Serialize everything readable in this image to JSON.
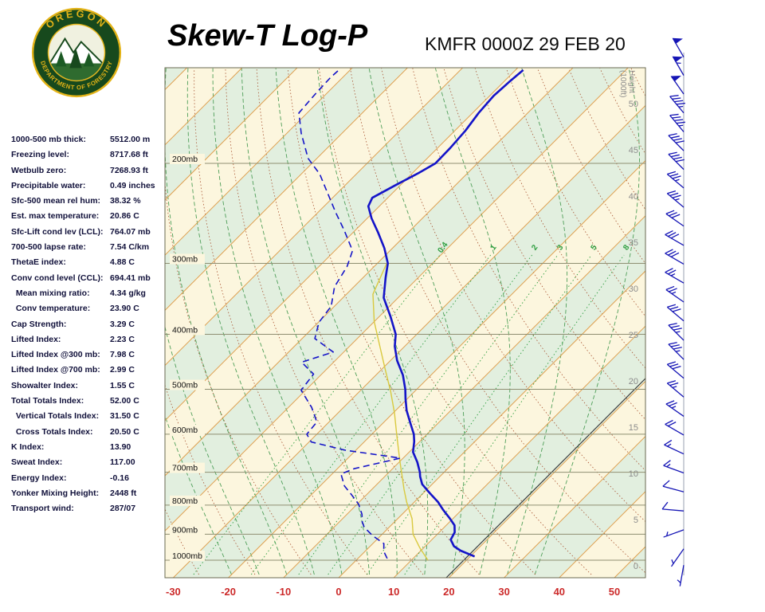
{
  "header": {
    "title": "Skew-T Log-P",
    "station": "KMFR 0000Z 29 FEB 20"
  },
  "logo": {
    "top_text": "OREGON",
    "bottom_text": "DEPARTMENT OF FORESTRY"
  },
  "stats": [
    {
      "label": "1000-500 mb thick:",
      "value": "5512.00 m"
    },
    {
      "label": "Freezing level:",
      "value": "8717.68 ft"
    },
    {
      "label": "Wetbulb zero:",
      "value": "7268.93 ft"
    },
    {
      "label": "Precipitable water:",
      "value": "0.49 inches"
    },
    {
      "label": "Sfc-500 mean rel hum:",
      "value": "38.32 %"
    },
    {
      "label": "Est. max temperature:",
      "value": "20.86 C"
    },
    {
      "label": "Sfc-Lift cond lev (LCL):",
      "value": "764.07 mb"
    },
    {
      "label": "700-500 lapse rate:",
      "value": "7.54 C/km"
    },
    {
      "label": "ThetaE index:",
      "value": "4.88 C"
    },
    {
      "label": "Conv cond level (CCL):",
      "value": "694.41 mb"
    },
    {
      "label": "  Mean mixing ratio:",
      "value": "4.34 g/kg"
    },
    {
      "label": "  Conv temperature:",
      "value": "23.90 C"
    },
    {
      "label": "Cap Strength:",
      "value": "3.29 C"
    },
    {
      "label": "Lifted Index:",
      "value": "2.23 C"
    },
    {
      "label": "Lifted Index @300 mb:",
      "value": "7.98 C"
    },
    {
      "label": "Lifted Index @700 mb:",
      "value": "2.99 C"
    },
    {
      "label": "Showalter Index:",
      "value": "1.55 C"
    },
    {
      "label": "Total Totals Index:",
      "value": "52.00 C"
    },
    {
      "label": "  Vertical Totals Index:",
      "value": "31.50 C"
    },
    {
      "label": "  Cross Totals Index:",
      "value": "20.50 C"
    },
    {
      "label": "K Index:",
      "value": "13.90"
    },
    {
      "label": "Sweat Index:",
      "value": "117.00"
    },
    {
      "label": "Energy Index:",
      "value": "-0.16"
    },
    {
      "label": "Yonker Mixing Height:",
      "value": "2448 ft"
    },
    {
      "label": "Transport wind:",
      "value": "287/07"
    }
  ],
  "chart_data": {
    "type": "skewt-log-p",
    "title": "Skew-T Log-P",
    "station_time": "KMFR 0000Z 29 FEB 20",
    "pressure_levels_mb": [
      200,
      300,
      400,
      500,
      600,
      700,
      800,
      900,
      1000
    ],
    "temp_axis_c": [
      -30,
      -20,
      -10,
      0,
      10,
      20,
      30,
      40,
      50
    ],
    "height_axis_kft": [
      50,
      45,
      40,
      35,
      30,
      25,
      20,
      15,
      10,
      5,
      0
    ],
    "height_axis_label": [
      "Height",
      "(1000ft)"
    ],
    "mixing_ratio_gkg": [
      0.4,
      1,
      2,
      3,
      5,
      8
    ],
    "isotherm_step_c": 10,
    "reference_isotherm_c": 19.5,
    "temperature_profile": [
      [
        985,
        20.8
      ],
      [
        962,
        17.2
      ],
      [
        945,
        15.2
      ],
      [
        920,
        13.4
      ],
      [
        893,
        12.8
      ],
      [
        868,
        11.5
      ],
      [
        842,
        9.2
      ],
      [
        815,
        6.6
      ],
      [
        790,
        4.3
      ],
      [
        762,
        1.2
      ],
      [
        735,
        -1.8
      ],
      [
        712,
        -3.6
      ],
      [
        700,
        -4.4
      ],
      [
        672,
        -6.7
      ],
      [
        645,
        -9.3
      ],
      [
        618,
        -11.0
      ],
      [
        600,
        -12.4
      ],
      [
        572,
        -15.2
      ],
      [
        545,
        -18.0
      ],
      [
        520,
        -20.3
      ],
      [
        500,
        -22.1
      ],
      [
        472,
        -25.1
      ],
      [
        445,
        -28.8
      ],
      [
        420,
        -31.8
      ],
      [
        400,
        -33.8
      ],
      [
        372,
        -38.0
      ],
      [
        345,
        -42.6
      ],
      [
        318,
        -45.9
      ],
      [
        300,
        -48.1
      ],
      [
        282,
        -51.5
      ],
      [
        265,
        -55.4
      ],
      [
        250,
        -59.2
      ],
      [
        238,
        -62.0
      ],
      [
        230,
        -62.8
      ],
      [
        218,
        -60.8
      ],
      [
        208,
        -58.9
      ],
      [
        200,
        -57.6
      ],
      [
        188,
        -57.7
      ],
      [
        175,
        -58.1
      ],
      [
        163,
        -58.9
      ],
      [
        152,
        -59.3
      ],
      [
        144,
        -59.0
      ],
      [
        137,
        -58.6
      ]
    ],
    "dewpoint_profile": [
      [
        993,
        5.3
      ],
      [
        965,
        3.4
      ],
      [
        935,
        2.0
      ],
      [
        905,
        -1.5
      ],
      [
        875,
        -4.5
      ],
      [
        857,
        -5.8
      ],
      [
        830,
        -7.3
      ],
      [
        797,
        -9.7
      ],
      [
        768,
        -12.6
      ],
      [
        740,
        -15.6
      ],
      [
        705,
        -18.4
      ],
      [
        690,
        -17.0
      ],
      [
        661,
        -10.5
      ],
      [
        640,
        -22.0
      ],
      [
        619,
        -29.6
      ],
      [
        600,
        -31.8
      ],
      [
        571,
        -32.2
      ],
      [
        538,
        -35.8
      ],
      [
        502,
        -40.8
      ],
      [
        470,
        -41.5
      ],
      [
        448,
        -45.8
      ],
      [
        430,
        -41.9
      ],
      [
        407,
        -47.7
      ],
      [
        381,
        -49.9
      ],
      [
        357,
        -50.6
      ],
      [
        330,
        -53.5
      ],
      [
        304,
        -54.9
      ],
      [
        285,
        -56.8
      ],
      [
        262,
        -62.1
      ],
      [
        244,
        -66.8
      ],
      [
        223,
        -72.5
      ],
      [
        209,
        -76.6
      ],
      [
        196,
        -81.6
      ],
      [
        177,
        -87.4
      ],
      [
        163,
        -91.5
      ],
      [
        150,
        -92.0
      ],
      [
        141,
        -92.2
      ],
      [
        136,
        -92.0
      ]
    ],
    "wetbulb_profile": [
      [
        1000,
        13.0
      ],
      [
        950,
        9.2
      ],
      [
        900,
        5.6
      ],
      [
        845,
        2.6
      ],
      [
        790,
        -1.4
      ],
      [
        750,
        -4.2
      ],
      [
        717,
        -6.5
      ],
      [
        675,
        -9.6
      ],
      [
        650,
        -11.5
      ],
      [
        600,
        -15.5
      ],
      [
        550,
        -19.8
      ],
      [
        505,
        -24.3
      ],
      [
        460,
        -29.5
      ],
      [
        420,
        -34.5
      ],
      [
        380,
        -40.0
      ],
      [
        340,
        -45.2
      ],
      [
        300,
        -48.3
      ]
    ],
    "wind_barbs": [
      [
        130,
        330,
        50
      ],
      [
        140,
        330,
        55
      ],
      [
        151,
        325,
        50
      ],
      [
        163,
        320,
        45
      ],
      [
        176,
        320,
        45
      ],
      [
        190,
        315,
        40
      ],
      [
        205,
        315,
        40
      ],
      [
        221,
        310,
        35
      ],
      [
        239,
        310,
        35
      ],
      [
        258,
        305,
        30
      ],
      [
        279,
        300,
        30
      ],
      [
        301,
        300,
        30
      ],
      [
        325,
        300,
        25
      ],
      [
        351,
        305,
        25
      ],
      [
        379,
        310,
        30
      ],
      [
        410,
        315,
        35
      ],
      [
        443,
        315,
        35
      ],
      [
        478,
        310,
        30
      ],
      [
        516,
        310,
        25
      ],
      [
        558,
        305,
        25
      ],
      [
        602,
        300,
        20
      ],
      [
        650,
        295,
        15
      ],
      [
        702,
        290,
        15
      ],
      [
        758,
        285,
        10
      ],
      [
        819,
        275,
        10
      ],
      [
        884,
        250,
        7
      ],
      [
        955,
        215,
        5
      ],
      [
        1020,
        190,
        4
      ]
    ],
    "colors": {
      "band_cream": "#FCF6DE",
      "band_green": "#E2EFDF",
      "isotherm": "#DFA050",
      "dry_adiabat": "#A85432",
      "moist_adiabat": "#4E9E58",
      "mixing_ratio": "#2E9E40",
      "pressure_line": "#8F8F72",
      "temperature": "#1414C8",
      "dewpoint": "#1414C8",
      "wetbulb": "#D9C93F",
      "wind_barb": "#1515B5",
      "axis_temp_label": "#CC2A2A",
      "height_label": "#8C8C8C",
      "reference_line": "#3A3A3A",
      "border": "#6A6A50",
      "pressure_label_text": "#111111"
    }
  }
}
